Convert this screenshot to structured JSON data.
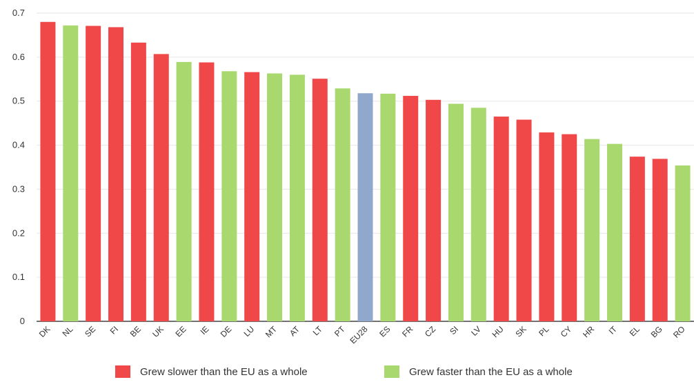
{
  "chart_data": {
    "type": "bar",
    "title": "",
    "xlabel": "",
    "ylabel": "",
    "ylim": [
      0,
      0.7
    ],
    "yticks": [
      "0",
      "0.1",
      "0.2",
      "0.3",
      "0.4",
      "0.5",
      "0.6",
      "0.7"
    ],
    "grid": true,
    "legend_placement": "bottom",
    "categories": [
      "DK",
      "NL",
      "SE",
      "FI",
      "BE",
      "UK",
      "EE",
      "IE",
      "DE",
      "LU",
      "MT",
      "AT",
      "LT",
      "PT",
      "EU28",
      "ES",
      "FR",
      "CZ",
      "SI",
      "LV",
      "HU",
      "SK",
      "PL",
      "CY",
      "HR",
      "IT",
      "EL",
      "BG",
      "RO"
    ],
    "values": [
      0.68,
      0.672,
      0.671,
      0.668,
      0.633,
      0.607,
      0.589,
      0.588,
      0.568,
      0.566,
      0.563,
      0.56,
      0.551,
      0.529,
      0.518,
      0.517,
      0.512,
      0.503,
      0.494,
      0.485,
      0.465,
      0.458,
      0.429,
      0.425,
      0.414,
      0.403,
      0.374,
      0.369,
      0.354
    ],
    "groups": [
      "slower",
      "faster",
      "slower",
      "slower",
      "slower",
      "slower",
      "faster",
      "slower",
      "faster",
      "slower",
      "faster",
      "faster",
      "slower",
      "faster",
      "eu",
      "faster",
      "slower",
      "slower",
      "faster",
      "faster",
      "slower",
      "slower",
      "slower",
      "slower",
      "faster",
      "faster",
      "slower",
      "slower",
      "faster"
    ],
    "colors": {
      "slower": "#f04848",
      "faster": "#a8d86e",
      "eu": "#8fa8cc"
    },
    "legend": [
      {
        "key": "slower",
        "label": "Grew slower than the EU as a whole"
      },
      {
        "key": "faster",
        "label": "Grew faster than the EU as a whole"
      }
    ]
  }
}
